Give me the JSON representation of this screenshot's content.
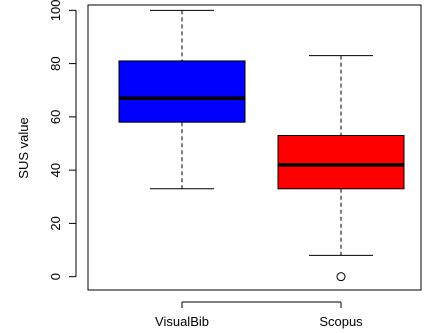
{
  "chart_data": {
    "type": "boxplot",
    "title": "",
    "xlabel": "",
    "ylabel": "SUS value",
    "ylim": [
      -5,
      102
    ],
    "y_ticks": [
      0,
      20,
      40,
      60,
      80,
      100
    ],
    "grid": false,
    "legend": "none",
    "categories": [
      "VisualBib",
      "Scopus"
    ],
    "boxes": [
      {
        "category": "VisualBib",
        "color": "#0000ff",
        "whisker_low": 33,
        "q1": 58,
        "median": 67,
        "q3": 81,
        "whisker_high": 100,
        "outliers": []
      },
      {
        "category": "Scopus",
        "color": "#ff0000",
        "whisker_low": 8,
        "q1": 33,
        "median": 42,
        "q3": 53,
        "whisker_high": 83,
        "outliers": [
          0
        ]
      }
    ]
  }
}
